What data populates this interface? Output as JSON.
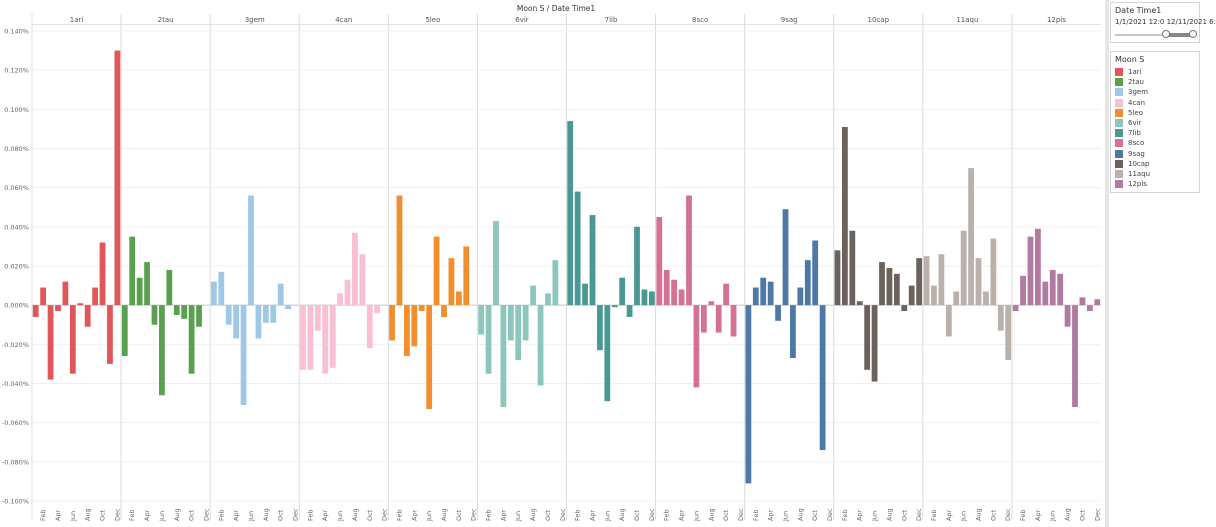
{
  "chart_data": {
    "type": "bar",
    "title": "Moon S  /  Date Time1",
    "ylim": [
      -0.1,
      0.14
    ],
    "yticks": [
      "-0.100%",
      "-0.080%",
      "-0.060%",
      "-0.040%",
      "-0.020%",
      "0.000%",
      "0.020%",
      "0.040%",
      "0.060%",
      "0.080%",
      "0.100%",
      "0.120%",
      "0.140%"
    ],
    "ytick_values": [
      -0.1,
      -0.08,
      -0.06,
      -0.04,
      -0.02,
      0,
      0.02,
      0.04,
      0.06,
      0.08,
      0.1,
      0.12,
      0.14
    ],
    "month_tick_labels": [
      "Feb",
      "Apr",
      "Jun",
      "Aug",
      "Oct",
      "Dec"
    ],
    "months_per_panel": 12,
    "grid": "horizontal",
    "panels": [
      {
        "name": "1ari",
        "color": "#e15759",
        "values": [
          -0.006,
          0.009,
          -0.038,
          -0.003,
          0.012,
          -0.035,
          0.001,
          -0.011,
          0.009,
          0.032,
          -0.03,
          0.13
        ]
      },
      {
        "name": "2tau",
        "color": "#59a14f",
        "values": [
          -0.026,
          0.035,
          0.014,
          0.022,
          -0.01,
          -0.046,
          0.018,
          -0.005,
          -0.007,
          -0.035,
          -0.011
        ]
      },
      {
        "name": "3gem",
        "color": "#9fc8e6",
        "values": [
          0.012,
          0.017,
          -0.01,
          -0.017,
          -0.051,
          0.056,
          -0.017,
          -0.009,
          -0.009,
          0.011,
          -0.002
        ]
      },
      {
        "name": "4can",
        "color": "#fabfd2",
        "values": [
          -0.033,
          -0.033,
          -0.013,
          -0.035,
          -0.032,
          0.006,
          0.013,
          0.037,
          0.026,
          -0.022,
          -0.004
        ]
      },
      {
        "name": "5leo",
        "color": "#f28e2b",
        "values": [
          -0.018,
          0.056,
          -0.026,
          -0.021,
          -0.003,
          -0.053,
          0.035,
          -0.006,
          0.024,
          0.007,
          0.03
        ]
      },
      {
        "name": "6vir",
        "color": "#8cc6bd",
        "values": [
          -0.015,
          -0.035,
          0.043,
          -0.052,
          -0.018,
          -0.028,
          -0.018,
          0.01,
          -0.041,
          0.006,
          0.023
        ]
      },
      {
        "name": "7lib",
        "color": "#499894",
        "values": [
          0.094,
          0.058,
          0.011,
          0.046,
          -0.023,
          -0.049,
          -0.001,
          0.014,
          -0.006,
          0.04,
          0.008,
          0.007
        ]
      },
      {
        "name": "8sco",
        "color": "#d37295",
        "values": [
          0.045,
          0.018,
          0.013,
          0.008,
          0.056,
          -0.042,
          -0.014,
          0.002,
          -0.014,
          0.011,
          -0.016
        ]
      },
      {
        "name": "9sag",
        "color": "#4e79a7",
        "values": [
          -0.091,
          0.009,
          0.014,
          0.012,
          -0.008,
          0.049,
          -0.027,
          0.009,
          0.023,
          0.033,
          -0.074
        ]
      },
      {
        "name": "10cap",
        "color": "#6b625e",
        "values": [
          0.028,
          0.091,
          0.038,
          0.002,
          -0.033,
          -0.039,
          0.022,
          0.019,
          0.016,
          -0.003,
          0.01,
          0.024
        ]
      },
      {
        "name": "11aqu",
        "color": "#bab0ac",
        "values": [
          0.025,
          0.01,
          0.026,
          -0.016,
          0.007,
          0.038,
          0.07,
          0.024,
          0.007,
          0.034,
          -0.013,
          -0.028
        ]
      },
      {
        "name": "12pis",
        "color": "#b07aa1",
        "values": [
          -0.003,
          0.015,
          0.035,
          0.039,
          0.012,
          0.018,
          0.016,
          -0.011,
          -0.052,
          0.004,
          -0.003,
          0.003
        ]
      }
    ]
  },
  "sidebar": {
    "filter_title": "Date Time1",
    "date_range": "1/1/2021 12:0 12/11/2021 6:",
    "range_position": {
      "start": 0.62,
      "end": 1.0
    },
    "legend_title": "Moon S"
  }
}
